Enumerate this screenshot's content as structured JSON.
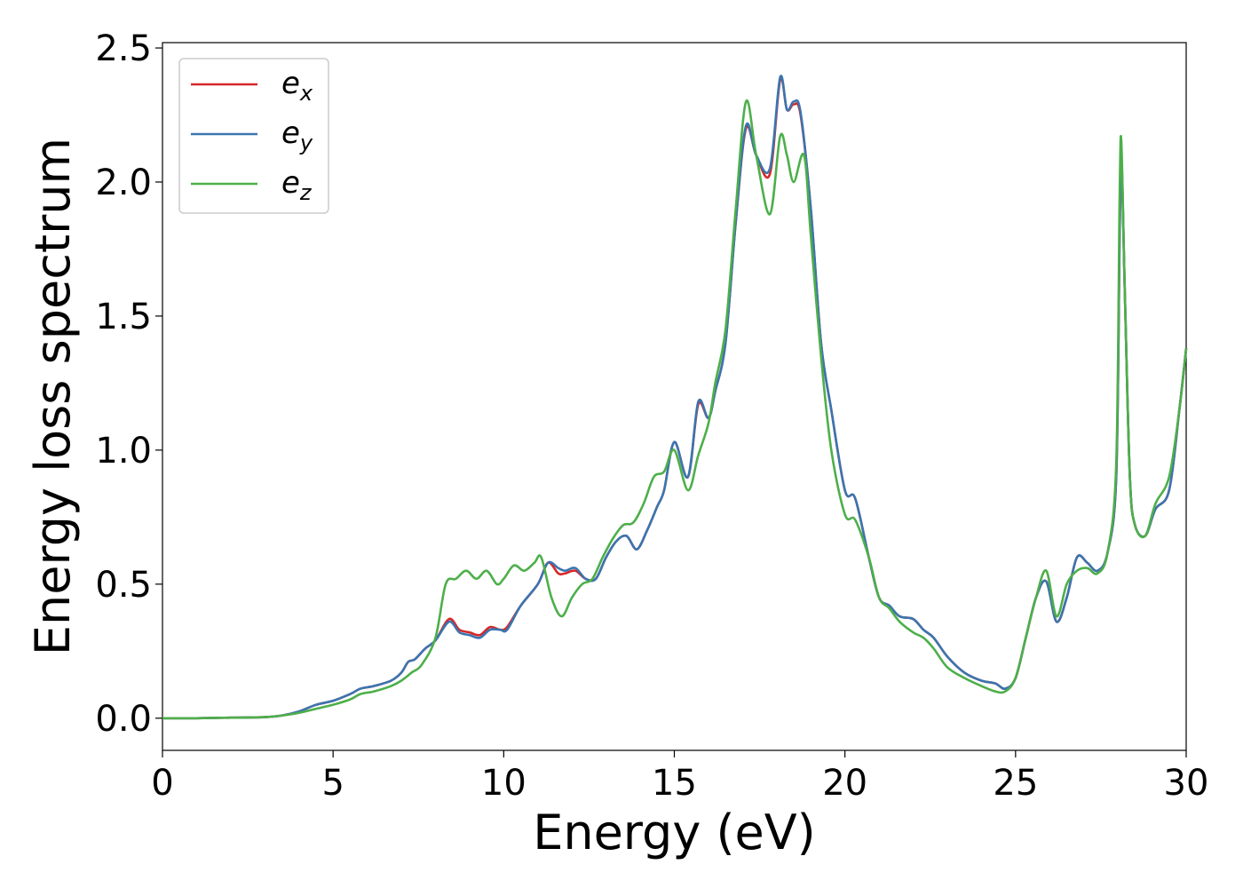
{
  "chart_data": {
    "type": "line",
    "title": "",
    "xlabel": "Energy (eV)",
    "ylabel": "Energy loss spectrum",
    "xlim": [
      0,
      30
    ],
    "ylim": [
      -0.12,
      2.52
    ],
    "xticks": [
      0,
      5,
      10,
      15,
      20,
      25,
      30
    ],
    "xtick_labels": [
      "0",
      "5",
      "10",
      "15",
      "20",
      "25",
      "30"
    ],
    "yticks": [
      0.0,
      0.5,
      1.0,
      1.5,
      2.0,
      2.5
    ],
    "ytick_labels": [
      "0.0",
      "0.5",
      "1.0",
      "1.5",
      "2.0",
      "2.5"
    ],
    "grid": false,
    "legend_position": "top-left",
    "series": [
      {
        "name": "e_x",
        "label_base": "e",
        "label_sub": "x",
        "color": "#d62728",
        "x": [
          0,
          1,
          2,
          3,
          3.5,
          4,
          4.5,
          5,
          5.5,
          5.8,
          6.2,
          6.7,
          7,
          7.2,
          7.4,
          7.7,
          8,
          8.4,
          8.7,
          9,
          9.3,
          9.6,
          9.9,
          10.1,
          10.5,
          11,
          11.3,
          11.6,
          11.8,
          12.1,
          12.4,
          12.7,
          13,
          13.3,
          13.6,
          13.9,
          14.2,
          14.5,
          14.7,
          15,
          15.4,
          15.7,
          16,
          16.2,
          16.5,
          16.8,
          17.1,
          17.4,
          17.8,
          18.1,
          18.3,
          18.5,
          18.7,
          19,
          19.3,
          19.6,
          20,
          20.3,
          20.7,
          21,
          21.3,
          21.6,
          22,
          22.3,
          22.6,
          23,
          23.5,
          24,
          24.4,
          24.7,
          25,
          25.3,
          25.6,
          25.9,
          26.2,
          26.5,
          26.8,
          27.1,
          27.4,
          27.7,
          27.95,
          28.05,
          28.1,
          28.2,
          28.35,
          28.5,
          28.8,
          29.1,
          29.5,
          29.8,
          30
        ],
        "y": [
          0,
          0,
          0.002,
          0.004,
          0.01,
          0.025,
          0.05,
          0.065,
          0.09,
          0.11,
          0.12,
          0.14,
          0.17,
          0.21,
          0.22,
          0.26,
          0.29,
          0.37,
          0.33,
          0.32,
          0.31,
          0.34,
          0.33,
          0.34,
          0.42,
          0.5,
          0.58,
          0.54,
          0.54,
          0.55,
          0.52,
          0.52,
          0.6,
          0.66,
          0.68,
          0.63,
          0.7,
          0.79,
          0.85,
          1.03,
          0.9,
          1.17,
          1.12,
          1.22,
          1.4,
          1.85,
          2.2,
          2.1,
          2.03,
          2.38,
          2.27,
          2.29,
          2.25,
          1.9,
          1.4,
          1.15,
          0.85,
          0.82,
          0.6,
          0.45,
          0.42,
          0.38,
          0.37,
          0.33,
          0.3,
          0.23,
          0.17,
          0.14,
          0.13,
          0.11,
          0.15,
          0.3,
          0.45,
          0.51,
          0.36,
          0.45,
          0.6,
          0.58,
          0.55,
          0.62,
          0.9,
          1.8,
          2.1,
          1.6,
          0.9,
          0.72,
          0.68,
          0.78,
          0.85,
          1.15,
          1.38
        ]
      },
      {
        "name": "e_y",
        "label_base": "e",
        "label_sub": "y",
        "color": "#3a75b0",
        "x": [
          0,
          1,
          2,
          3,
          3.5,
          4,
          4.5,
          5,
          5.5,
          5.8,
          6.2,
          6.7,
          7,
          7.2,
          7.4,
          7.7,
          8,
          8.4,
          8.7,
          9,
          9.3,
          9.6,
          9.9,
          10.1,
          10.5,
          11,
          11.3,
          11.6,
          11.8,
          12.1,
          12.4,
          12.7,
          13,
          13.3,
          13.6,
          13.9,
          14.2,
          14.5,
          14.7,
          15,
          15.4,
          15.7,
          16,
          16.2,
          16.5,
          16.8,
          17.1,
          17.4,
          17.8,
          18.1,
          18.3,
          18.5,
          18.7,
          19,
          19.3,
          19.6,
          20,
          20.3,
          20.7,
          21,
          21.3,
          21.6,
          22,
          22.3,
          22.6,
          23,
          23.5,
          24,
          24.4,
          24.7,
          25,
          25.3,
          25.6,
          25.9,
          26.2,
          26.5,
          26.8,
          27.1,
          27.4,
          27.7,
          27.95,
          28.05,
          28.1,
          28.2,
          28.35,
          28.5,
          28.8,
          29.1,
          29.5,
          29.8,
          30
        ],
        "y": [
          0,
          0,
          0.002,
          0.004,
          0.01,
          0.025,
          0.05,
          0.065,
          0.09,
          0.11,
          0.12,
          0.14,
          0.17,
          0.21,
          0.22,
          0.26,
          0.29,
          0.36,
          0.32,
          0.31,
          0.3,
          0.33,
          0.33,
          0.33,
          0.42,
          0.5,
          0.58,
          0.56,
          0.55,
          0.56,
          0.52,
          0.52,
          0.6,
          0.66,
          0.68,
          0.63,
          0.7,
          0.79,
          0.85,
          1.03,
          0.9,
          1.18,
          1.12,
          1.22,
          1.4,
          1.85,
          2.21,
          2.1,
          2.05,
          2.39,
          2.27,
          2.3,
          2.26,
          1.9,
          1.4,
          1.15,
          0.85,
          0.82,
          0.6,
          0.45,
          0.42,
          0.38,
          0.37,
          0.33,
          0.3,
          0.23,
          0.17,
          0.14,
          0.13,
          0.11,
          0.15,
          0.3,
          0.45,
          0.51,
          0.36,
          0.45,
          0.6,
          0.58,
          0.55,
          0.62,
          0.9,
          1.8,
          2.1,
          1.6,
          0.9,
          0.72,
          0.68,
          0.78,
          0.85,
          1.15,
          1.38
        ]
      },
      {
        "name": "e_z",
        "label_base": "e",
        "label_sub": "z",
        "color": "#4daf4a",
        "x": [
          0,
          1,
          2,
          3,
          3.5,
          4,
          4.5,
          5,
          5.5,
          5.8,
          6.2,
          6.7,
          7,
          7.3,
          7.6,
          8,
          8.3,
          8.6,
          8.9,
          9.2,
          9.5,
          9.8,
          10,
          10.3,
          10.6,
          10.9,
          11.1,
          11.4,
          11.7,
          12,
          12.3,
          12.6,
          12.9,
          13.2,
          13.5,
          13.8,
          14.1,
          14.4,
          14.7,
          15,
          15.4,
          15.7,
          16,
          16.2,
          16.5,
          16.8,
          17.1,
          17.4,
          17.8,
          18.1,
          18.3,
          18.5,
          18.8,
          19,
          19.3,
          19.6,
          20,
          20.3,
          20.7,
          21,
          21.3,
          21.6,
          22,
          22.3,
          22.6,
          23,
          23.5,
          24,
          24.4,
          24.7,
          25,
          25.3,
          25.6,
          25.9,
          26.2,
          26.5,
          26.8,
          27.1,
          27.4,
          27.7,
          27.95,
          28.05,
          28.1,
          28.2,
          28.35,
          28.5,
          28.8,
          29.1,
          29.5,
          29.8,
          30
        ],
        "y": [
          0,
          0,
          0.002,
          0.004,
          0.01,
          0.02,
          0.035,
          0.05,
          0.07,
          0.09,
          0.1,
          0.12,
          0.14,
          0.17,
          0.2,
          0.3,
          0.5,
          0.52,
          0.55,
          0.52,
          0.55,
          0.5,
          0.52,
          0.57,
          0.55,
          0.58,
          0.6,
          0.45,
          0.38,
          0.45,
          0.5,
          0.52,
          0.6,
          0.67,
          0.72,
          0.73,
          0.8,
          0.9,
          0.92,
          1.0,
          0.85,
          0.98,
          1.1,
          1.25,
          1.45,
          1.9,
          2.3,
          2.1,
          1.88,
          2.17,
          2.1,
          2.0,
          2.1,
          1.8,
          1.35,
          1.0,
          0.76,
          0.74,
          0.6,
          0.45,
          0.41,
          0.36,
          0.32,
          0.3,
          0.26,
          0.19,
          0.15,
          0.12,
          0.1,
          0.1,
          0.15,
          0.3,
          0.45,
          0.55,
          0.38,
          0.5,
          0.55,
          0.56,
          0.54,
          0.62,
          0.95,
          1.95,
          2.15,
          1.6,
          0.9,
          0.72,
          0.68,
          0.8,
          0.9,
          1.15,
          1.38
        ]
      }
    ]
  }
}
